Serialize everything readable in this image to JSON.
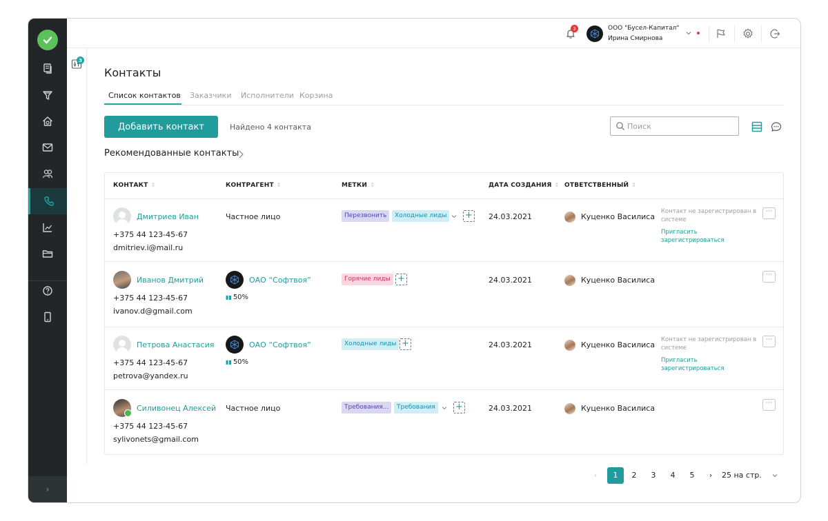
{
  "topbar": {
    "notifications_count": "3",
    "org_name": "ООО \"Бусел-Капитал\"",
    "user_name": "Ирина Смирнова"
  },
  "filter_count": "3",
  "page_title": "Контакты",
  "tabs": [
    {
      "label": "Список контактов",
      "active": true
    },
    {
      "label": "Заказчики",
      "active": false
    },
    {
      "label": "Исполнители",
      "active": false
    },
    {
      "label": "Корзина",
      "active": false
    }
  ],
  "toolbar": {
    "add_label": "Добавить контакт",
    "found_text": "Найдено 4 контакта",
    "search_placeholder": "Поиск"
  },
  "recommended_label": "Рекомендованные контакты",
  "table": {
    "columns": [
      "КОНТАКТ",
      "КОНТРАГЕНТ",
      "МЕТКИ",
      "ДАТА СОЗДАНИЯ",
      "ОТВЕТСТВЕННЫЙ"
    ],
    "rows": [
      {
        "name": "Дмитриев Иван",
        "phone": "+375 44 123-45-67",
        "email": "dmitriev.i@mail.ru",
        "counterparty": "Частное лицо",
        "counterparty_pct": "",
        "tags": [
          {
            "label": "Перезвонить",
            "color": "violet"
          },
          {
            "label": "Холодные лиды",
            "color": "cyan"
          }
        ],
        "date": "24.03.2021",
        "responsible": "Куценко Василиса",
        "note": "Контакт не зарегистрирован в системе",
        "invite": "Пригласить зарегистрироваться"
      },
      {
        "name": "Иванов Дмитрий",
        "phone": "+375 44 123-45-67",
        "email": "ivanov.d@gmail.com",
        "counterparty": "ОАО “Софтвоя”",
        "counterparty_pct": "50%",
        "tags": [
          {
            "label": "Горячие лиды",
            "color": "pink"
          }
        ],
        "date": "24.03.2021",
        "responsible": "Куценко Василиса",
        "note": "",
        "invite": ""
      },
      {
        "name": "Петрова Анастасия",
        "phone": "+375 44 123-45-67",
        "email": "petrova@yandex.ru",
        "counterparty": "ОАО “Софтвоя”",
        "counterparty_pct": "50%",
        "tags": [
          {
            "label": "Холодные лиды",
            "color": "cyan"
          }
        ],
        "date": "24.03.2021",
        "responsible": "Куценко Василиса",
        "note": "Контакт не зарегистрирован в системе",
        "invite": "Пригласить зарегистрироваться"
      },
      {
        "name": "Силивонец Алексей",
        "phone": "+375 44 123-45-67",
        "email": "sylivonets@gmail.com",
        "counterparty": "Частное лицо",
        "counterparty_pct": "",
        "tags": [
          {
            "label": "Требования...",
            "color": "violet"
          },
          {
            "label": "Требования",
            "color": "cyan"
          }
        ],
        "date": "24.03.2021",
        "responsible": "Куценко Василиса",
        "note": "",
        "invite": ""
      }
    ]
  },
  "pagination": {
    "pages": [
      "1",
      "2",
      "3",
      "4",
      "5"
    ],
    "current": "1",
    "per_page": "25 на стр."
  },
  "icons": {
    "accent": "#1f9c9b",
    "rail": [
      "documents-icon",
      "funnel-icon",
      "home-money-icon",
      "mail-icon",
      "people-icon",
      "phone-icon",
      "chart-icon",
      "folder-icon",
      "help-icon",
      "mobile-icon"
    ]
  }
}
